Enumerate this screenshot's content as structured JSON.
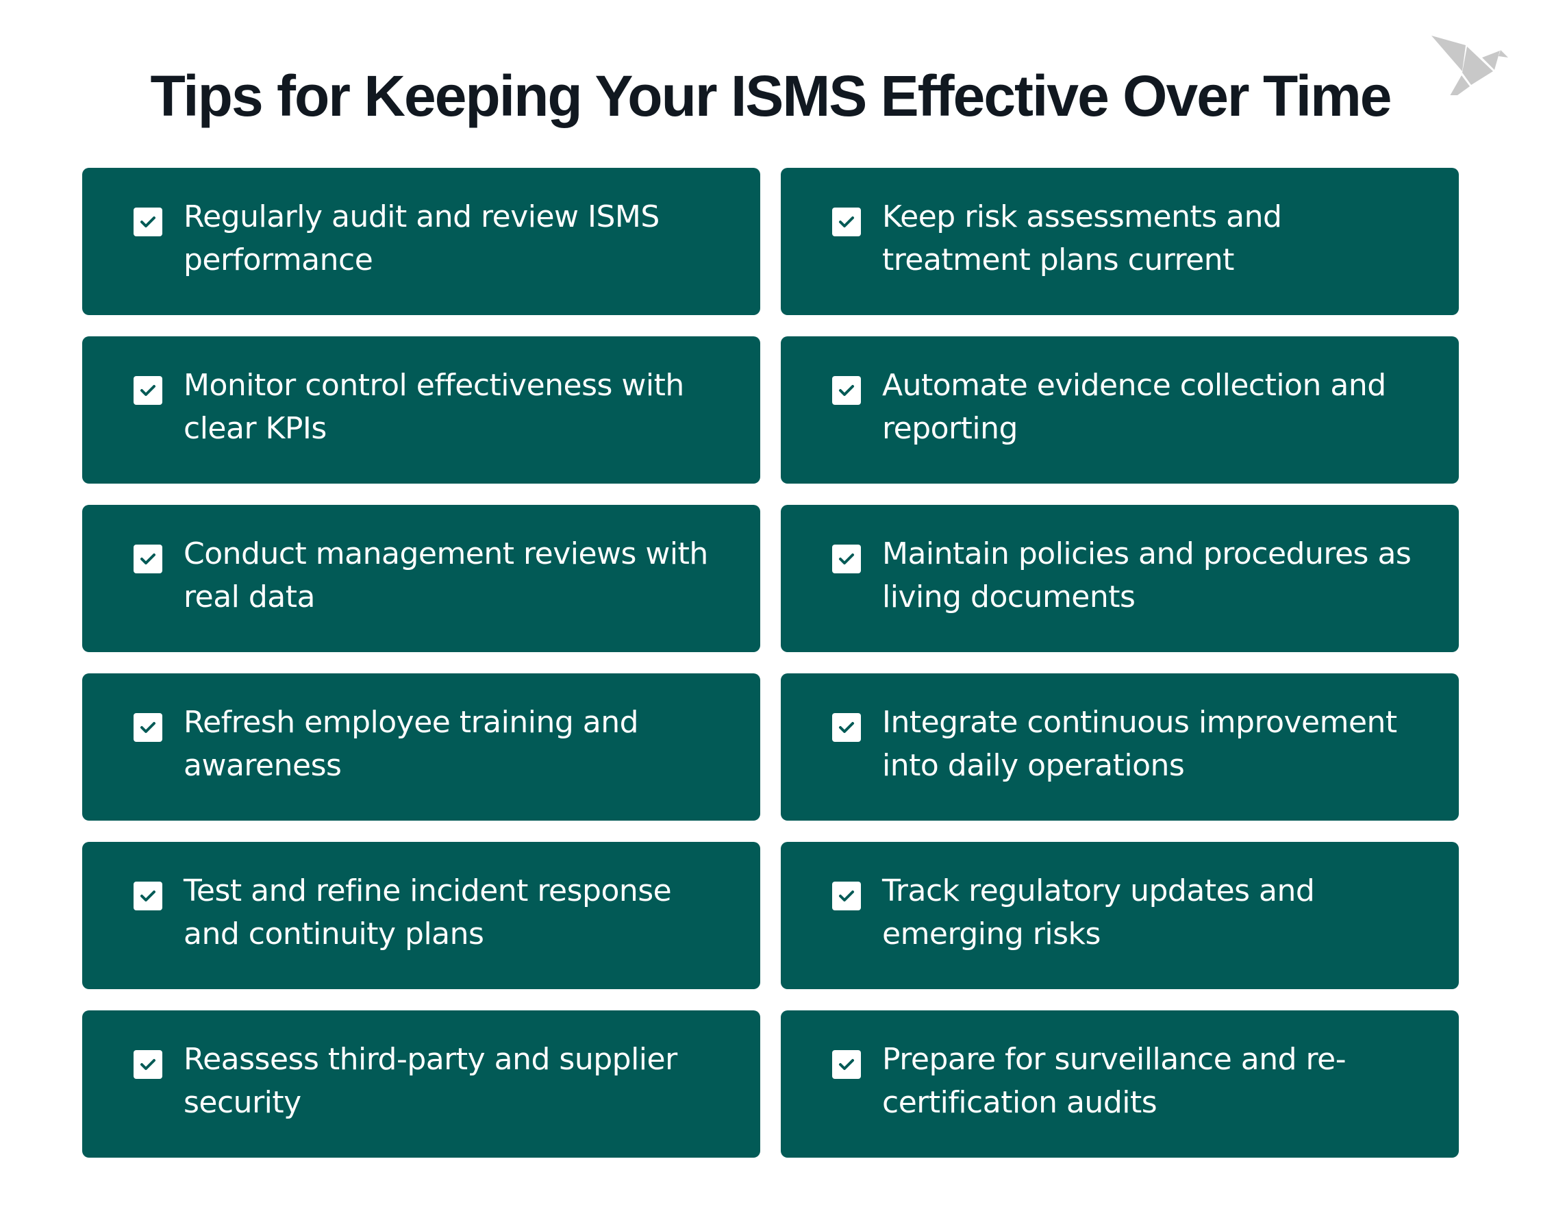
{
  "title": "Tips for Keeping Your ISMS Effective Over Time",
  "logo": "origami-bird-logo",
  "colors": {
    "card": "#025a56",
    "title": "#111820",
    "logo": "#c8c8c8"
  },
  "tips": [
    {
      "text": "Regularly audit and review ISMS performance",
      "checked": true
    },
    {
      "text": "Keep risk assessments and treatment plans current",
      "checked": true
    },
    {
      "text": "Monitor control effectiveness with clear KPIs",
      "checked": true
    },
    {
      "text": "Automate evidence collection and reporting",
      "checked": true
    },
    {
      "text": "Conduct management reviews with real data",
      "checked": true
    },
    {
      "text": "Maintain policies and procedures as living documents",
      "checked": true
    },
    {
      "text": "Refresh employee training and awareness",
      "checked": true
    },
    {
      "text": "Integrate continuous improvement into daily operations",
      "checked": true
    },
    {
      "text": "Test and refine incident response and continuity plans",
      "checked": true
    },
    {
      "text": "Track regulatory updates and emerging risks",
      "checked": true
    },
    {
      "text": "Reassess third-party and supplier security",
      "checked": true
    },
    {
      "text": "Prepare for surveillance and re-certification audits",
      "checked": true
    }
  ]
}
